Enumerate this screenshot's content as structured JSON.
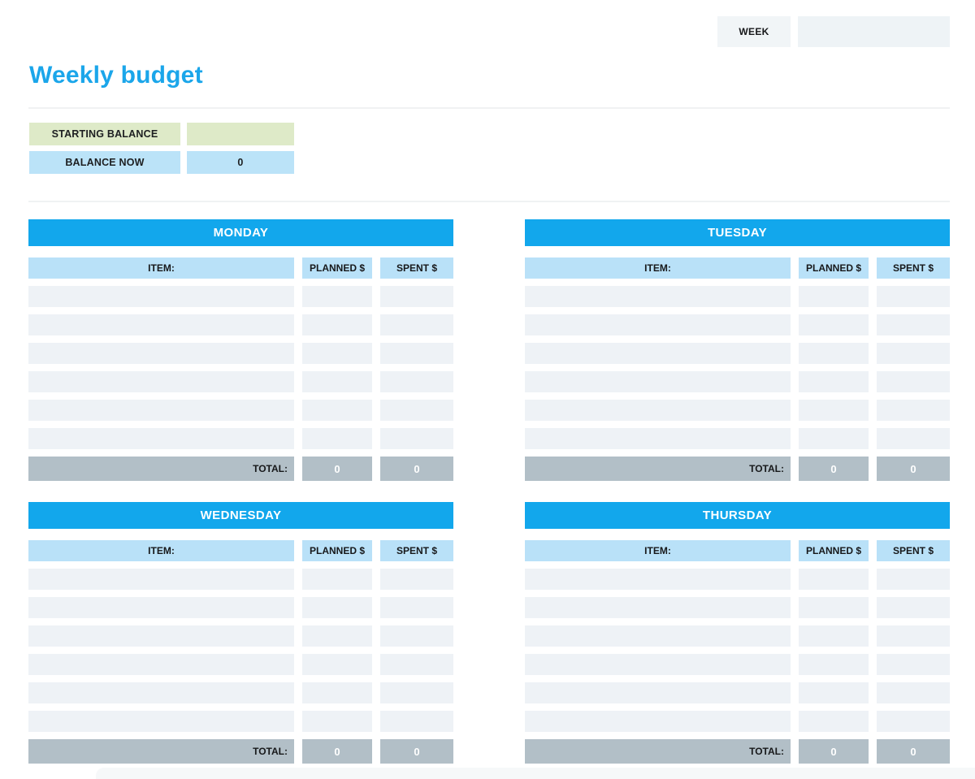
{
  "header": {
    "week_label": "WEEK",
    "week_value": ""
  },
  "title": "Weekly budget",
  "balance": {
    "starting_label": "STARTING BALANCE",
    "starting_value": "",
    "now_label": "BALANCE NOW",
    "now_value": "0"
  },
  "table_headers": {
    "item": "ITEM:",
    "planned": "PLANNED $",
    "spent": "SPENT $",
    "total": "TOTAL:"
  },
  "days": [
    {
      "name": "MONDAY",
      "rows": [
        [
          "",
          "",
          ""
        ],
        [
          "",
          "",
          ""
        ],
        [
          "",
          "",
          ""
        ],
        [
          "",
          "",
          ""
        ],
        [
          "",
          "",
          ""
        ],
        [
          "",
          "",
          ""
        ]
      ],
      "total_planned": "0",
      "total_spent": "0"
    },
    {
      "name": "TUESDAY",
      "rows": [
        [
          "",
          "",
          ""
        ],
        [
          "",
          "",
          ""
        ],
        [
          "",
          "",
          ""
        ],
        [
          "",
          "",
          ""
        ],
        [
          "",
          "",
          ""
        ],
        [
          "",
          "",
          ""
        ]
      ],
      "total_planned": "0",
      "total_spent": "0"
    },
    {
      "name": "WEDNESDAY",
      "rows": [
        [
          "",
          "",
          ""
        ],
        [
          "",
          "",
          ""
        ],
        [
          "",
          "",
          ""
        ],
        [
          "",
          "",
          ""
        ],
        [
          "",
          "",
          ""
        ],
        [
          "",
          "",
          ""
        ]
      ],
      "total_planned": "0",
      "total_spent": "0"
    },
    {
      "name": "THURSDAY",
      "rows": [
        [
          "",
          "",
          ""
        ],
        [
          "",
          "",
          ""
        ],
        [
          "",
          "",
          ""
        ],
        [
          "",
          "",
          ""
        ],
        [
          "",
          "",
          ""
        ],
        [
          "",
          "",
          ""
        ]
      ],
      "total_planned": "0",
      "total_spent": "0"
    }
  ],
  "colors": {
    "title_blue": "#1ba6ea",
    "day_header_blue": "#12a7ec",
    "column_header_blue": "#b9e1f8",
    "row_fill": "#eef2f6",
    "total_gray": "#b2bfc7",
    "balance_green": "#deeac8",
    "balance_blue": "#bbe3f8",
    "week_box_gray": "#f1f5f7"
  }
}
